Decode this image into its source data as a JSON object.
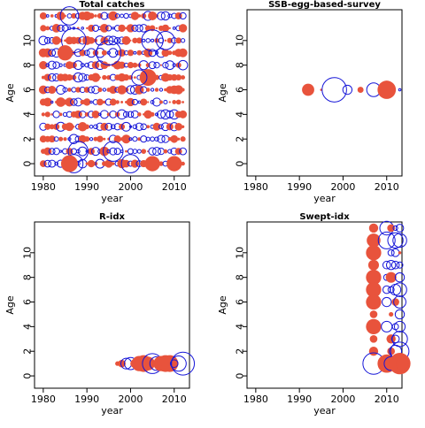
{
  "colors": {
    "positive": "#e8533c",
    "negative": "#1616d8",
    "axis": "#000000"
  },
  "chart_data": [
    {
      "type": "scatter",
      "subtype": "bubble-residuals",
      "title": "Total catches",
      "xlabel": "year",
      "ylabel": "Age",
      "xlim": [
        1978,
        2013.5
      ],
      "ylim": [
        -1,
        12.5
      ],
      "xticks": [
        1980,
        1990,
        2000,
        2010
      ],
      "yticks": [
        0,
        2,
        4,
        6,
        8,
        10
      ],
      "years": [
        1980,
        1981,
        1982,
        1983,
        1984,
        1985,
        1986,
        1987,
        1988,
        1989,
        1990,
        1991,
        1992,
        1993,
        1994,
        1995,
        1996,
        1997,
        1998,
        1999,
        2000,
        2001,
        2002,
        2003,
        2004,
        2005,
        2006,
        2007,
        2008,
        2009,
        2010,
        2011,
        2012
      ],
      "ages": [
        0,
        1,
        2,
        3,
        4,
        5,
        6,
        7,
        8,
        9,
        10,
        11,
        12
      ],
      "points": [
        {
          "x": 1987,
          "y": 10,
          "r": 1.6,
          "sign": "-"
        },
        {
          "x": 1995,
          "y": 9,
          "r": 1.6,
          "sign": "-"
        },
        {
          "x": 2005,
          "y": 10,
          "r": 1.4,
          "sign": "-"
        },
        {
          "x": 2008,
          "y": 10,
          "r": 1.2,
          "sign": "-"
        },
        {
          "x": 1986,
          "y": 12,
          "r": 1.2,
          "sign": "-"
        },
        {
          "x": 1996,
          "y": 1,
          "r": 1.3,
          "sign": "-"
        },
        {
          "x": 1988,
          "y": 1,
          "r": 1.3,
          "sign": "-"
        },
        {
          "x": 1987,
          "y": 0,
          "r": 1.2,
          "sign": "-"
        },
        {
          "x": 2000,
          "y": 0,
          "r": 1.2,
          "sign": "-"
        },
        {
          "x": 1986,
          "y": 0,
          "r": 1.1,
          "sign": "+"
        },
        {
          "x": 1985,
          "y": 9,
          "r": 1.0,
          "sign": "+"
        },
        {
          "x": 2004,
          "y": 7,
          "r": 1.1,
          "sign": "+"
        },
        {
          "x": 2002,
          "y": 7,
          "r": 1.0,
          "sign": "-"
        },
        {
          "x": 2005,
          "y": 0,
          "r": 1.0,
          "sign": "+"
        },
        {
          "x": 2010,
          "y": 0,
          "r": 1.0,
          "sign": "+"
        }
      ]
    },
    {
      "type": "scatter",
      "subtype": "bubble-residuals",
      "title": "SSB-egg-based-survey",
      "xlabel": "year",
      "ylabel": "Age",
      "xlim": [
        1978,
        2013.5
      ],
      "ylim": [
        -1,
        12.5
      ],
      "xticks": [
        1980,
        1990,
        2000,
        2010
      ],
      "yticks": [
        0,
        2,
        4,
        6,
        8,
        10
      ],
      "points": [
        {
          "x": 1992,
          "y": 6,
          "r": 0.8,
          "sign": "+"
        },
        {
          "x": 1995,
          "y": 6,
          "r": 0.15,
          "sign": "+"
        },
        {
          "x": 1998,
          "y": 6,
          "r": 1.6,
          "sign": "-"
        },
        {
          "x": 2001,
          "y": 6,
          "r": 0.6,
          "sign": "-"
        },
        {
          "x": 2004,
          "y": 6,
          "r": 0.4,
          "sign": "+"
        },
        {
          "x": 2007,
          "y": 6,
          "r": 0.9,
          "sign": "-"
        },
        {
          "x": 2010,
          "y": 6,
          "r": 1.2,
          "sign": "+"
        },
        {
          "x": 2013,
          "y": 6,
          "r": 0.15,
          "sign": "-"
        }
      ]
    },
    {
      "type": "scatter",
      "subtype": "bubble-residuals",
      "title": "R-idx",
      "xlabel": "year",
      "ylabel": "Age",
      "xlim": [
        1978,
        2013.5
      ],
      "ylim": [
        -1,
        12.5
      ],
      "xticks": [
        1980,
        1990,
        2000,
        2010
      ],
      "yticks": [
        0,
        2,
        4,
        6,
        8,
        10
      ],
      "points": [
        {
          "x": 1997,
          "y": 1,
          "r": 0.3,
          "sign": "+"
        },
        {
          "x": 1998,
          "y": 1,
          "r": 0.5,
          "sign": "+"
        },
        {
          "x": 1999,
          "y": 1,
          "r": 0.7,
          "sign": "-"
        },
        {
          "x": 2000,
          "y": 1,
          "r": 0.8,
          "sign": "-"
        },
        {
          "x": 2001,
          "y": 1,
          "r": 0.6,
          "sign": "+"
        },
        {
          "x": 2002,
          "y": 1,
          "r": 1.0,
          "sign": "+"
        },
        {
          "x": 2003,
          "y": 1,
          "r": 1.1,
          "sign": "+"
        },
        {
          "x": 2004,
          "y": 1,
          "r": 0.9,
          "sign": "+"
        },
        {
          "x": 2005,
          "y": 1,
          "r": 1.3,
          "sign": "-"
        },
        {
          "x": 2006,
          "y": 1,
          "r": 0.9,
          "sign": "-"
        },
        {
          "x": 2007,
          "y": 1,
          "r": 1.0,
          "sign": "+"
        },
        {
          "x": 2008,
          "y": 1,
          "r": 1.1,
          "sign": "+"
        },
        {
          "x": 2009,
          "y": 1,
          "r": 1.1,
          "sign": "+"
        },
        {
          "x": 2010,
          "y": 1,
          "r": 0.5,
          "sign": "-"
        },
        {
          "x": 2011,
          "y": 1,
          "r": 1.0,
          "sign": "-"
        },
        {
          "x": 2012,
          "y": 1,
          "r": 1.5,
          "sign": "-"
        }
      ]
    },
    {
      "type": "scatter",
      "subtype": "bubble-residuals",
      "title": "Swept-idx",
      "xlabel": "year",
      "ylabel": "Age",
      "xlim": [
        1978,
        2013.5
      ],
      "ylim": [
        -1,
        12.5
      ],
      "xticks": [
        1980,
        1990,
        2000,
        2010
      ],
      "yticks": [
        0,
        2,
        4,
        6,
        8,
        10
      ],
      "points": [
        {
          "x": 2007,
          "y": 12,
          "r": 0.6,
          "sign": "+"
        },
        {
          "x": 2007,
          "y": 11,
          "r": 0.9,
          "sign": "+"
        },
        {
          "x": 2007,
          "y": 10,
          "r": 1.0,
          "sign": "+"
        },
        {
          "x": 2007,
          "y": 9,
          "r": 0.7,
          "sign": "+"
        },
        {
          "x": 2007,
          "y": 8,
          "r": 1.0,
          "sign": "+"
        },
        {
          "x": 2007,
          "y": 7,
          "r": 1.0,
          "sign": "+"
        },
        {
          "x": 2007,
          "y": 6,
          "r": 1.0,
          "sign": "+"
        },
        {
          "x": 2007,
          "y": 5,
          "r": 0.5,
          "sign": "+"
        },
        {
          "x": 2007,
          "y": 4,
          "r": 1.0,
          "sign": "+"
        },
        {
          "x": 2007,
          "y": 3,
          "r": 0.5,
          "sign": "+"
        },
        {
          "x": 2007,
          "y": 2,
          "r": 0.6,
          "sign": "+"
        },
        {
          "x": 2007,
          "y": 1,
          "r": 1.4,
          "sign": "-"
        },
        {
          "x": 2010,
          "y": 12,
          "r": 0.9,
          "sign": "-"
        },
        {
          "x": 2010,
          "y": 11,
          "r": 1.1,
          "sign": "-"
        },
        {
          "x": 2010,
          "y": 9,
          "r": 0.5,
          "sign": "-"
        },
        {
          "x": 2010,
          "y": 8,
          "r": 0.4,
          "sign": "-"
        },
        {
          "x": 2010,
          "y": 7,
          "r": 0.5,
          "sign": "-"
        },
        {
          "x": 2010,
          "y": 6,
          "r": 0.6,
          "sign": "-"
        },
        {
          "x": 2010,
          "y": 4,
          "r": 0.7,
          "sign": "-"
        },
        {
          "x": 2010,
          "y": 1,
          "r": 1.2,
          "sign": "+"
        },
        {
          "x": 2011,
          "y": 12,
          "r": 0.5,
          "sign": "+"
        },
        {
          "x": 2011,
          "y": 10,
          "r": 0.4,
          "sign": "-"
        },
        {
          "x": 2011,
          "y": 9,
          "r": 0.6,
          "sign": "-"
        },
        {
          "x": 2011,
          "y": 8,
          "r": 0.7,
          "sign": "+"
        },
        {
          "x": 2011,
          "y": 7,
          "r": 0.4,
          "sign": "-"
        },
        {
          "x": 2011,
          "y": 5,
          "r": 0.3,
          "sign": "+"
        },
        {
          "x": 2011,
          "y": 3,
          "r": 0.6,
          "sign": "+"
        },
        {
          "x": 2011,
          "y": 2,
          "r": 0.5,
          "sign": "+"
        },
        {
          "x": 2011,
          "y": 1,
          "r": 0.9,
          "sign": "-"
        },
        {
          "x": 2012,
          "y": 12,
          "r": 0.3,
          "sign": "-"
        },
        {
          "x": 2012,
          "y": 11,
          "r": 1.0,
          "sign": "-"
        },
        {
          "x": 2012,
          "y": 10,
          "r": 0.5,
          "sign": "-"
        },
        {
          "x": 2012,
          "y": 9,
          "r": 0.5,
          "sign": "-"
        },
        {
          "x": 2012,
          "y": 7,
          "r": 0.7,
          "sign": "-"
        },
        {
          "x": 2012,
          "y": 6,
          "r": 0.5,
          "sign": "+"
        },
        {
          "x": 2012,
          "y": 4,
          "r": 0.4,
          "sign": "-"
        },
        {
          "x": 2012,
          "y": 3,
          "r": 0.5,
          "sign": "-"
        },
        {
          "x": 2012,
          "y": 2,
          "r": 0.8,
          "sign": "-"
        },
        {
          "x": 2012,
          "y": 1,
          "r": 0.9,
          "sign": "+"
        },
        {
          "x": 2013,
          "y": 12,
          "r": 0.5,
          "sign": "-"
        },
        {
          "x": 2013,
          "y": 11,
          "r": 0.9,
          "sign": "-"
        },
        {
          "x": 2013,
          "y": 10,
          "r": 0.2,
          "sign": "+"
        },
        {
          "x": 2013,
          "y": 9,
          "r": 0.4,
          "sign": "-"
        },
        {
          "x": 2013,
          "y": 8,
          "r": 0.6,
          "sign": "-"
        },
        {
          "x": 2013,
          "y": 7,
          "r": 0.9,
          "sign": "-"
        },
        {
          "x": 2013,
          "y": 6,
          "r": 0.8,
          "sign": "-"
        },
        {
          "x": 2013,
          "y": 5,
          "r": 0.6,
          "sign": "-"
        },
        {
          "x": 2013,
          "y": 4,
          "r": 0.7,
          "sign": "-"
        },
        {
          "x": 2013,
          "y": 3,
          "r": 1.0,
          "sign": "-"
        },
        {
          "x": 2013,
          "y": 2,
          "r": 1.2,
          "sign": "-"
        },
        {
          "x": 2013,
          "y": 1,
          "r": 1.4,
          "sign": "+"
        },
        {
          "x": 2013.5,
          "y": 1,
          "r": 0.8,
          "sign": "+"
        }
      ]
    }
  ]
}
